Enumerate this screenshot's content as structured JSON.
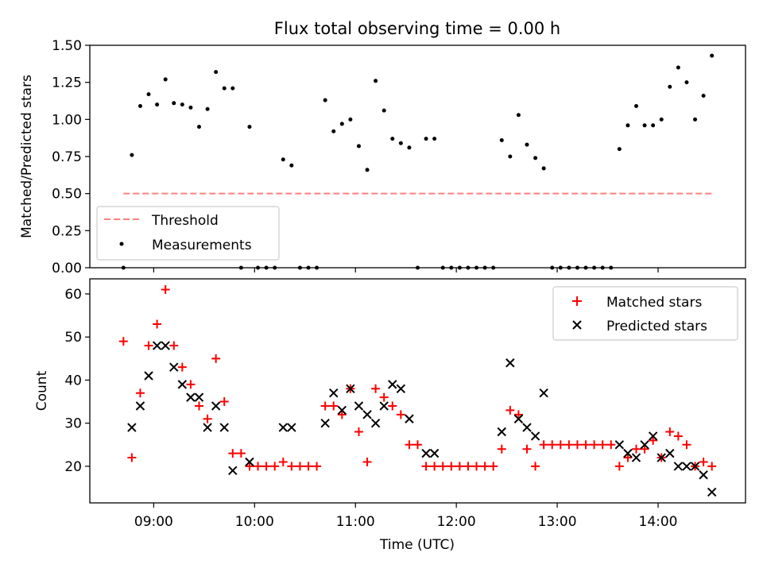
{
  "chart_data": [
    {
      "type": "scatter",
      "title": "Flux total observing time = 0.00 h",
      "xlabel": "",
      "ylabel": "Matched/Predicted stars",
      "ylim": [
        0,
        1.5
      ],
      "yticks": [
        0,
        0.25,
        0.5,
        0.75,
        1.0,
        1.25,
        1.5
      ],
      "ytick_labels": [
        "0.00",
        "0.25",
        "0.50",
        "0.75",
        "1.00",
        "1.25",
        "1.50"
      ],
      "xlim": [
        "08:22",
        "14:52"
      ],
      "xticks": [
        "09:00",
        "10:00",
        "11:00",
        "12:00",
        "13:00",
        "14:00"
      ],
      "legend_position": "lower-left",
      "series": [
        {
          "name": "Threshold",
          "style": "dashed-line",
          "color": "#ff7f7f",
          "points": [
            [
              "08:42",
              0.5
            ],
            [
              "14:33",
              0.5
            ]
          ]
        },
        {
          "name": "Measurements",
          "style": "dot",
          "color": "#000000",
          "points": [
            [
              "08:42",
              0.0
            ],
            [
              "08:47",
              0.76
            ],
            [
              "08:52",
              1.09
            ],
            [
              "08:57",
              1.17
            ],
            [
              "09:02",
              1.1
            ],
            [
              "09:07",
              1.27
            ],
            [
              "09:12",
              1.11
            ],
            [
              "09:17",
              1.1
            ],
            [
              "09:22",
              1.08
            ],
            [
              "09:27",
              0.95
            ],
            [
              "09:32",
              1.07
            ],
            [
              "09:37",
              1.32
            ],
            [
              "09:42",
              1.21
            ],
            [
              "09:47",
              1.21
            ],
            [
              "09:52",
              0.0
            ],
            [
              "09:57",
              0.95
            ],
            [
              "10:02",
              0.0
            ],
            [
              "10:07",
              0.0
            ],
            [
              "10:12",
              0.0
            ],
            [
              "10:17",
              0.73
            ],
            [
              "10:22",
              0.69
            ],
            [
              "10:27",
              0.0
            ],
            [
              "10:32",
              0.0
            ],
            [
              "10:37",
              0.0
            ],
            [
              "10:42",
              1.13
            ],
            [
              "10:47",
              0.92
            ],
            [
              "10:52",
              0.97
            ],
            [
              "10:57",
              1.0
            ],
            [
              "11:02",
              0.82
            ],
            [
              "11:07",
              0.66
            ],
            [
              "11:12",
              1.26
            ],
            [
              "11:17",
              1.06
            ],
            [
              "11:22",
              0.87
            ],
            [
              "11:27",
              0.84
            ],
            [
              "11:32",
              0.81
            ],
            [
              "11:37",
              0.0
            ],
            [
              "11:42",
              0.87
            ],
            [
              "11:47",
              0.87
            ],
            [
              "11:52",
              0.0
            ],
            [
              "11:57",
              0.0
            ],
            [
              "12:02",
              0.0
            ],
            [
              "12:07",
              0.0
            ],
            [
              "12:12",
              0.0
            ],
            [
              "12:17",
              0.0
            ],
            [
              "12:22",
              0.0
            ],
            [
              "12:27",
              0.86
            ],
            [
              "12:32",
              0.75
            ],
            [
              "12:37",
              1.03
            ],
            [
              "12:42",
              0.83
            ],
            [
              "12:47",
              0.74
            ],
            [
              "12:52",
              0.67
            ],
            [
              "12:57",
              0.0
            ],
            [
              "13:02",
              0.0
            ],
            [
              "13:07",
              0.0
            ],
            [
              "13:12",
              0.0
            ],
            [
              "13:17",
              0.0
            ],
            [
              "13:22",
              0.0
            ],
            [
              "13:27",
              0.0
            ],
            [
              "13:32",
              0.0
            ],
            [
              "13:37",
              0.8
            ],
            [
              "13:42",
              0.96
            ],
            [
              "13:47",
              1.09
            ],
            [
              "13:52",
              0.96
            ],
            [
              "13:57",
              0.96
            ],
            [
              "14:02",
              1.0
            ],
            [
              "14:07",
              1.22
            ],
            [
              "14:12",
              1.35
            ],
            [
              "14:17",
              1.25
            ],
            [
              "14:22",
              1.0
            ],
            [
              "14:27",
              1.16
            ],
            [
              "14:32",
              1.43
            ]
          ]
        }
      ]
    },
    {
      "type": "scatter",
      "title": "",
      "xlabel": "Time (UTC)",
      "ylabel": "Count",
      "ylim": [
        11.5,
        63.5
      ],
      "yticks": [
        20,
        30,
        40,
        50,
        60
      ],
      "ytick_labels": [
        "20",
        "30",
        "40",
        "50",
        "60"
      ],
      "xlim": [
        "08:22",
        "14:52"
      ],
      "xticks": [
        "09:00",
        "10:00",
        "11:00",
        "12:00",
        "13:00",
        "14:00"
      ],
      "xtick_labels": [
        "09:00",
        "10:00",
        "11:00",
        "12:00",
        "13:00",
        "14:00"
      ],
      "legend_position": "upper-right",
      "series": [
        {
          "name": "Matched stars",
          "style": "plus",
          "color": "#ff0000",
          "points": [
            [
              "08:42",
              49
            ],
            [
              "08:47",
              22
            ],
            [
              "08:52",
              37
            ],
            [
              "08:57",
              48
            ],
            [
              "09:02",
              53
            ],
            [
              "09:07",
              61
            ],
            [
              "09:12",
              48
            ],
            [
              "09:17",
              43
            ],
            [
              "09:22",
              39
            ],
            [
              "09:27",
              34
            ],
            [
              "09:32",
              31
            ],
            [
              "09:37",
              45
            ],
            [
              "09:42",
              35
            ],
            [
              "09:47",
              23
            ],
            [
              "09:52",
              23
            ],
            [
              "09:57",
              20
            ],
            [
              "10:02",
              20
            ],
            [
              "10:07",
              20
            ],
            [
              "10:12",
              20
            ],
            [
              "10:17",
              21
            ],
            [
              "10:22",
              20
            ],
            [
              "10:27",
              20
            ],
            [
              "10:32",
              20
            ],
            [
              "10:37",
              20
            ],
            [
              "10:42",
              34
            ],
            [
              "10:47",
              34
            ],
            [
              "10:52",
              32
            ],
            [
              "10:57",
              38
            ],
            [
              "11:02",
              28
            ],
            [
              "11:07",
              21
            ],
            [
              "11:12",
              38
            ],
            [
              "11:17",
              36
            ],
            [
              "11:22",
              34
            ],
            [
              "11:27",
              32
            ],
            [
              "11:32",
              25
            ],
            [
              "11:37",
              25
            ],
            [
              "11:42",
              20
            ],
            [
              "11:47",
              20
            ],
            [
              "11:52",
              20
            ],
            [
              "11:57",
              20
            ],
            [
              "12:02",
              20
            ],
            [
              "12:07",
              20
            ],
            [
              "12:12",
              20
            ],
            [
              "12:17",
              20
            ],
            [
              "12:22",
              20
            ],
            [
              "12:27",
              24
            ],
            [
              "12:32",
              33
            ],
            [
              "12:37",
              32
            ],
            [
              "12:42",
              24
            ],
            [
              "12:47",
              20
            ],
            [
              "12:52",
              25
            ],
            [
              "12:57",
              25
            ],
            [
              "13:02",
              25
            ],
            [
              "13:07",
              25
            ],
            [
              "13:12",
              25
            ],
            [
              "13:17",
              25
            ],
            [
              "13:22",
              25
            ],
            [
              "13:27",
              25
            ],
            [
              "13:32",
              25
            ],
            [
              "13:37",
              20
            ],
            [
              "13:42",
              22
            ],
            [
              "13:47",
              24
            ],
            [
              "13:52",
              24
            ],
            [
              "13:57",
              26
            ],
            [
              "14:02",
              22
            ],
            [
              "14:07",
              28
            ],
            [
              "14:12",
              27
            ],
            [
              "14:17",
              25
            ],
            [
              "14:22",
              20
            ],
            [
              "14:27",
              21
            ],
            [
              "14:32",
              20
            ]
          ]
        },
        {
          "name": "Predicted stars",
          "style": "x",
          "color": "#000000",
          "points": [
            [
              "08:47",
              29
            ],
            [
              "08:52",
              34
            ],
            [
              "08:57",
              41
            ],
            [
              "09:02",
              48
            ],
            [
              "09:07",
              48
            ],
            [
              "09:12",
              43
            ],
            [
              "09:17",
              39
            ],
            [
              "09:22",
              36
            ],
            [
              "09:27",
              36
            ],
            [
              "09:32",
              29
            ],
            [
              "09:37",
              34
            ],
            [
              "09:42",
              29
            ],
            [
              "09:47",
              19
            ],
            [
              "09:57",
              21
            ],
            [
              "10:17",
              29
            ],
            [
              "10:22",
              29
            ],
            [
              "10:42",
              30
            ],
            [
              "10:47",
              37
            ],
            [
              "10:52",
              33
            ],
            [
              "10:57",
              38
            ],
            [
              "11:02",
              34
            ],
            [
              "11:07",
              32
            ],
            [
              "11:12",
              30
            ],
            [
              "11:17",
              34
            ],
            [
              "11:22",
              39
            ],
            [
              "11:27",
              38
            ],
            [
              "11:32",
              31
            ],
            [
              "11:42",
              23
            ],
            [
              "11:47",
              23
            ],
            [
              "12:27",
              28
            ],
            [
              "12:32",
              44
            ],
            [
              "12:37",
              31
            ],
            [
              "12:42",
              29
            ],
            [
              "12:47",
              27
            ],
            [
              "12:52",
              37
            ],
            [
              "13:37",
              25
            ],
            [
              "13:42",
              23
            ],
            [
              "13:47",
              22
            ],
            [
              "13:52",
              25
            ],
            [
              "13:57",
              27
            ],
            [
              "14:02",
              22
            ],
            [
              "14:07",
              23
            ],
            [
              "14:12",
              20
            ],
            [
              "14:17",
              20
            ],
            [
              "14:22",
              20
            ],
            [
              "14:27",
              18
            ],
            [
              "14:32",
              14
            ]
          ]
        }
      ]
    }
  ]
}
